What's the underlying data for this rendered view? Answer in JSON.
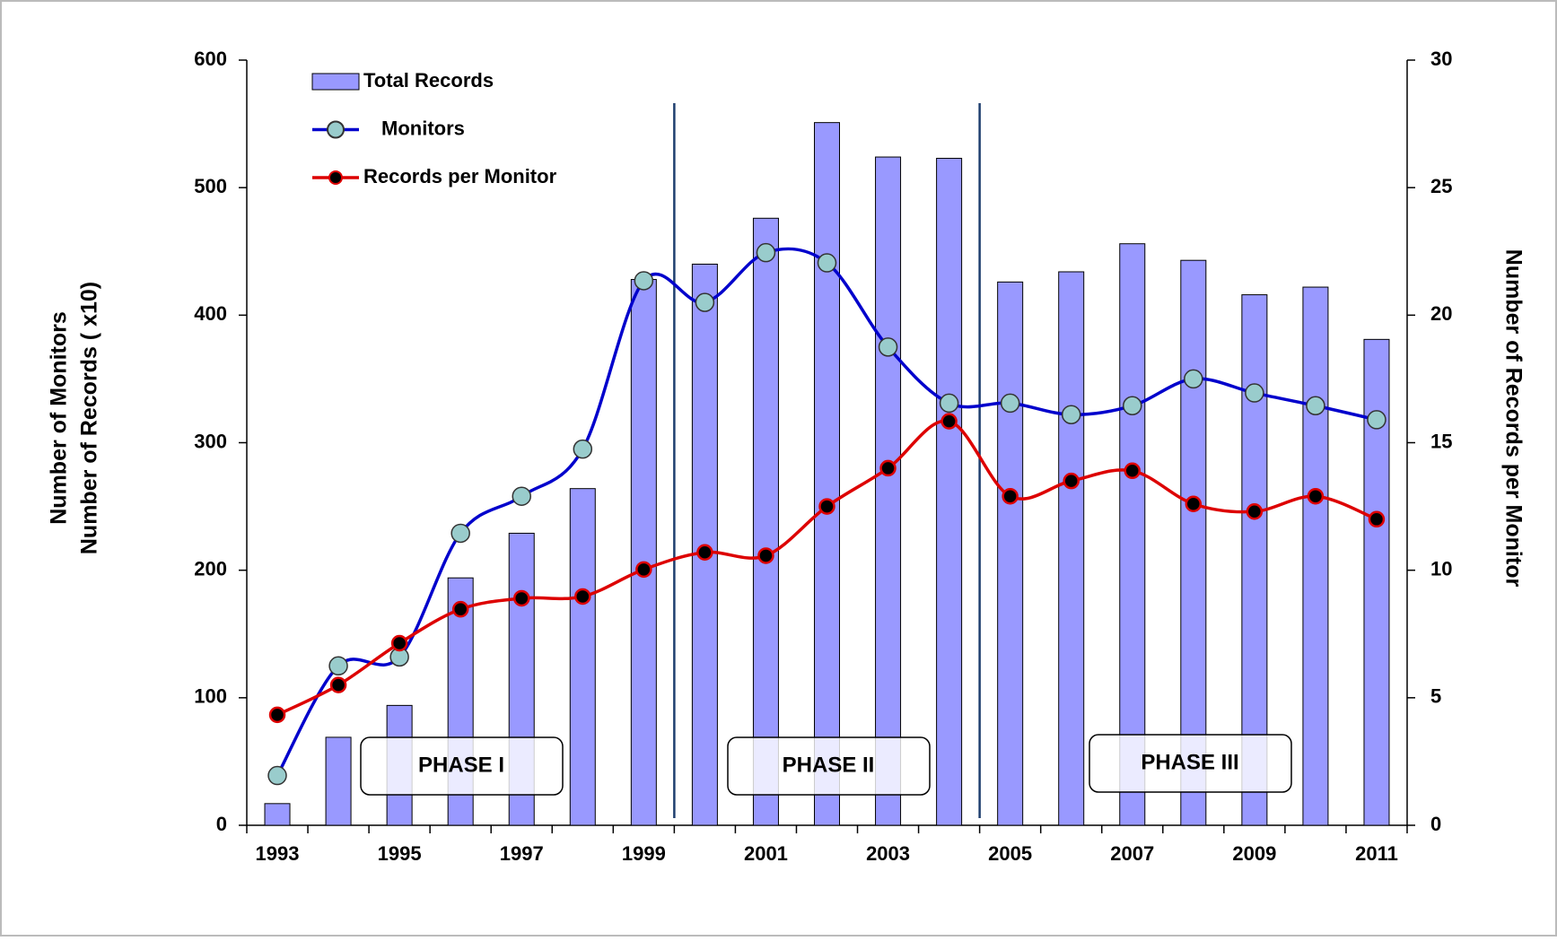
{
  "chart_data": {
    "type": "bar_line_combo",
    "categories": [
      "1993",
      null,
      "1995",
      null,
      "1997",
      null,
      "1999",
      null,
      "2001",
      null,
      "2003",
      null,
      "2005",
      null,
      "2007",
      null,
      "2009",
      null,
      "2011"
    ],
    "series": [
      {
        "name": "Total Records",
        "type": "bar",
        "color": "#9999ff",
        "axis": "y",
        "values": [
          17,
          69,
          94,
          194,
          229,
          264,
          428,
          440,
          476,
          551,
          524,
          523,
          426,
          434,
          456,
          443,
          416,
          422,
          381
        ]
      },
      {
        "name": "Monitors",
        "type": "line",
        "color": "#0000cc",
        "marker_color": "#99cccc",
        "axis": "y",
        "values": [
          39,
          125,
          132,
          229,
          258,
          295,
          427,
          410,
          449,
          441,
          375,
          331,
          331,
          322,
          329,
          350,
          339,
          329,
          318
        ]
      },
      {
        "name": "Records per Monitor",
        "type": "line",
        "color": "#dd0000",
        "marker_color": "#000000",
        "axis": "y2",
        "values": [
          4.33,
          5.5,
          7.14,
          8.47,
          8.9,
          8.97,
          10.03,
          10.7,
          10.57,
          12.5,
          14.0,
          15.84,
          12.9,
          13.5,
          13.9,
          12.6,
          12.3,
          12.9,
          12.0
        ]
      }
    ],
    "ylabel": [
      "Number of Monitors",
      "Number of Records ( x10)"
    ],
    "y2label": "Number of Records per Monitor",
    "ylim": [
      0,
      600
    ],
    "yticks": [
      0,
      100,
      200,
      300,
      400,
      500,
      600
    ],
    "y2lim": [
      0,
      30
    ],
    "y2ticks": [
      0,
      5,
      10,
      15,
      20,
      25,
      30
    ],
    "annotations": [
      "PHASE I",
      "PHASE II",
      "PHASE III"
    ],
    "smooth": true,
    "legend": "top-left"
  }
}
